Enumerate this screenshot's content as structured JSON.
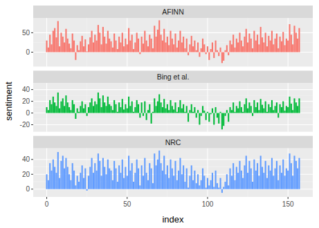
{
  "chart_data": {
    "type": "bar",
    "x_label": "index",
    "y_label": "sentiment",
    "grid": true,
    "xlim": [
      -8.4,
      165.4
    ],
    "xticks": [
      0,
      50,
      100,
      150
    ],
    "x": [
      0,
      1,
      2,
      3,
      4,
      5,
      6,
      7,
      8,
      9,
      10,
      11,
      12,
      13,
      14,
      15,
      16,
      17,
      18,
      19,
      20,
      21,
      22,
      23,
      24,
      25,
      26,
      27,
      28,
      29,
      30,
      31,
      32,
      33,
      34,
      35,
      36,
      37,
      38,
      39,
      40,
      41,
      42,
      43,
      44,
      45,
      46,
      47,
      48,
      49,
      50,
      51,
      52,
      53,
      54,
      55,
      56,
      57,
      58,
      59,
      60,
      61,
      62,
      63,
      64,
      65,
      66,
      67,
      68,
      69,
      70,
      71,
      72,
      73,
      74,
      75,
      76,
      77,
      78,
      79,
      80,
      81,
      82,
      83,
      84,
      85,
      86,
      87,
      88,
      89,
      90,
      91,
      92,
      93,
      94,
      95,
      96,
      97,
      98,
      99,
      100,
      101,
      102,
      103,
      104,
      105,
      106,
      107,
      108,
      109,
      110,
      111,
      112,
      113,
      114,
      115,
      116,
      117,
      118,
      119,
      120,
      121,
      122,
      123,
      124,
      125,
      126,
      127,
      128,
      129,
      130,
      131,
      132,
      133,
      134,
      135,
      136,
      137,
      138,
      139,
      140,
      141,
      142,
      143,
      144,
      145,
      146,
      147,
      148,
      149,
      150,
      151,
      152,
      153,
      154,
      155,
      156,
      157
    ],
    "series": [
      {
        "name": "AFINN",
        "color": "#F8766D",
        "ylim": [
          -37,
          88
        ],
        "yticks": [
          0,
          50
        ],
        "values": [
          30,
          12,
          45,
          20,
          55,
          62,
          38,
          80,
          15,
          50,
          40,
          25,
          60,
          35,
          22,
          10,
          48,
          30,
          -20,
          18,
          5,
          28,
          42,
          15,
          33,
          2,
          20,
          38,
          55,
          25,
          45,
          30,
          70,
          50,
          20,
          65,
          40,
          22,
          55,
          35,
          28,
          12,
          48,
          30,
          8,
          40,
          25,
          50,
          15,
          35,
          20,
          62,
          30,
          45,
          8,
          25,
          50,
          35,
          -5,
          40,
          22,
          55,
          30,
          15,
          45,
          35,
          10,
          68,
          40,
          58,
          82,
          45,
          30,
          60,
          25,
          40,
          18,
          55,
          35,
          20,
          48,
          12,
          30,
          55,
          25,
          40,
          10,
          35,
          -8,
          20,
          42,
          15,
          30,
          5,
          25,
          -12,
          10,
          35,
          20,
          -5,
          15,
          -20,
          8,
          25,
          -15,
          30,
          5,
          -10,
          12,
          -28,
          -22,
          5,
          18,
          -8,
          30,
          20,
          45,
          12,
          35,
          25,
          50,
          30,
          15,
          40,
          60,
          25,
          48,
          35,
          10,
          55,
          30,
          45,
          20,
          65,
          38,
          25,
          50,
          15,
          42,
          30,
          55,
          20,
          35,
          48,
          10,
          40,
          28,
          52,
          18,
          35,
          30,
          72,
          45,
          20,
          68,
          50,
          35,
          62
        ]
      },
      {
        "name": "Bing et al.",
        "color": "#00BA38",
        "ylim": [
          -32,
          51
        ],
        "yticks": [
          -20,
          0,
          20,
          40
        ],
        "values": [
          10,
          5,
          22,
          15,
          28,
          18,
          12,
          35,
          8,
          20,
          25,
          12,
          30,
          18,
          10,
          5,
          22,
          15,
          -10,
          8,
          2,
          12,
          20,
          8,
          15,
          -5,
          10,
          18,
          25,
          12,
          20,
          15,
          35,
          25,
          10,
          30,
          18,
          12,
          28,
          15,
          12,
          5,
          22,
          15,
          2,
          18,
          10,
          24,
          6,
          15,
          8,
          28,
          12,
          20,
          2,
          10,
          22,
          15,
          -8,
          18,
          -5,
          20,
          -12,
          5,
          15,
          -18,
          2,
          25,
          12,
          20,
          32,
          18,
          10,
          24,
          8,
          15,
          5,
          22,
          12,
          6,
          18,
          2,
          10,
          22,
          8,
          15,
          2,
          12,
          -15,
          5,
          15,
          2,
          10,
          -8,
          5,
          -20,
          -5,
          12,
          4,
          -12,
          2,
          -15,
          -2,
          8,
          -20,
          10,
          -8,
          -18,
          2,
          -28,
          -22,
          -5,
          5,
          -15,
          10,
          5,
          18,
          2,
          12,
          8,
          20,
          10,
          2,
          15,
          25,
          8,
          18,
          12,
          -5,
          22,
          10,
          18,
          5,
          24,
          14,
          8,
          20,
          2,
          15,
          10,
          22,
          5,
          12,
          18,
          -8,
          15,
          10,
          20,
          4,
          12,
          10,
          28,
          16,
          5,
          25,
          18,
          12,
          25
        ]
      },
      {
        "name": "NRC",
        "color": "#619CFF",
        "ylim": [
          -10.5,
          55
        ],
        "yticks": [
          0,
          20,
          40
        ],
        "values": [
          20,
          12,
          35,
          25,
          40,
          30,
          22,
          50,
          15,
          38,
          45,
          28,
          42,
          30,
          20,
          12,
          35,
          25,
          5,
          18,
          10,
          22,
          32,
          15,
          28,
          -2,
          18,
          30,
          42,
          22,
          35,
          25,
          48,
          38,
          18,
          42,
          30,
          20,
          40,
          28,
          25,
          12,
          38,
          28,
          10,
          32,
          22,
          40,
          15,
          30,
          18,
          45,
          25,
          35,
          10,
          22,
          40,
          28,
          5,
          32,
          18,
          42,
          22,
          12,
          35,
          28,
          8,
          48,
          32,
          40,
          52,
          35,
          25,
          45,
          20,
          32,
          15,
          40,
          28,
          18,
          38,
          12,
          25,
          42,
          20,
          32,
          10,
          28,
          2,
          18,
          32,
          12,
          25,
          8,
          20,
          5,
          12,
          28,
          18,
          2,
          15,
          5,
          12,
          22,
          3,
          25,
          8,
          2,
          15,
          -5,
          3,
          10,
          20,
          5,
          28,
          18,
          35,
          12,
          30,
          22,
          38,
          25,
          15,
          32,
          45,
          22,
          38,
          28,
          10,
          40,
          25,
          35,
          18,
          45,
          30,
          22,
          38,
          15,
          32,
          25,
          42,
          18,
          28,
          38,
          12,
          32,
          22,
          40,
          18,
          28,
          25,
          48,
          35,
          18,
          45,
          38,
          28,
          42
        ]
      }
    ]
  }
}
